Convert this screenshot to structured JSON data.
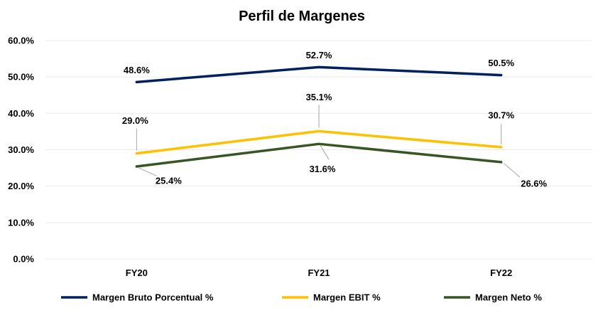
{
  "chart_data": {
    "type": "line",
    "title": "Perfil de Margenes",
    "categories": [
      "FY20",
      "FY21",
      "FY22"
    ],
    "ylim": [
      0,
      60
    ],
    "yticks": [
      "0.0%",
      "10.0%",
      "20.0%",
      "30.0%",
      "40.0%",
      "50.0%",
      "60.0%"
    ],
    "grid": true,
    "legend_position": "bottom",
    "series": [
      {
        "name": "Margen Bruto Porcentual %",
        "values": [
          48.6,
          52.7,
          50.5
        ],
        "labels": [
          "48.6%",
          "52.7%",
          "50.5%"
        ],
        "color": "#002060"
      },
      {
        "name": "Margen EBIT %",
        "values": [
          29.0,
          35.1,
          30.7
        ],
        "labels": [
          "29.0%",
          "35.1%",
          "30.7%"
        ],
        "color": "#ffc000"
      },
      {
        "name": "Margen Neto %",
        "values": [
          25.4,
          31.6,
          26.6
        ],
        "labels": [
          "25.4%",
          "31.6%",
          "26.6%"
        ],
        "color": "#375623"
      }
    ]
  }
}
